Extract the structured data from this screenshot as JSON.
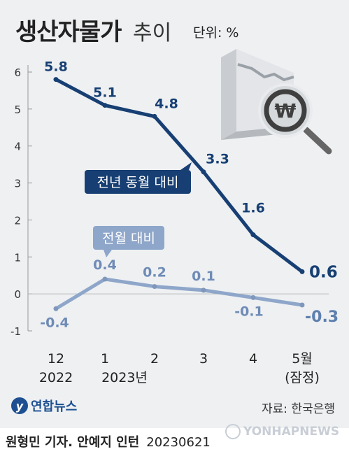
{
  "header": {
    "title": "생산자물가",
    "title_light": "추이",
    "unit": "단위: %"
  },
  "chart_data": {
    "type": "line",
    "categories": [
      {
        "line1": "12",
        "line2": "2022"
      },
      {
        "line1": "1",
        "line2": "2023년"
      },
      {
        "line1": "2",
        "line2": ""
      },
      {
        "line1": "3",
        "line2": ""
      },
      {
        "line1": "4",
        "line2": ""
      },
      {
        "line1": "5월",
        "line2": "(잠정)"
      }
    ],
    "ylim": [
      -1,
      6
    ],
    "yticks": [
      "-1",
      "0",
      "1",
      "2",
      "3",
      "4",
      "5",
      "6"
    ],
    "series": [
      {
        "name": "전년 동월 대비",
        "color": "#173f73",
        "values": [
          5.8,
          5.1,
          4.8,
          3.3,
          1.6,
          0.6
        ],
        "labels": [
          "5.8",
          "5.1",
          "4.8",
          "3.3",
          "1.6",
          "0.6"
        ]
      },
      {
        "name": "전월 대비",
        "color": "#8ea6c9",
        "values": [
          -0.4,
          0.4,
          0.2,
          0.1,
          -0.1,
          -0.3
        ],
        "labels": [
          "-0.4",
          "0.4",
          "0.2",
          "0.1",
          "-0.1",
          "-0.3"
        ]
      }
    ],
    "grid": false,
    "legend": "inline callouts"
  },
  "footer": {
    "brand": "연합뉴스",
    "source": "자료: 한국은행",
    "byline": "원형민 기자. 안예지 인턴",
    "date": "20230621",
    "watermark": "YONHAPNEWS"
  },
  "icons": {
    "illustration": "magnifier-won-chart-icon",
    "brand_logo": "yonhap-logo-icon"
  }
}
